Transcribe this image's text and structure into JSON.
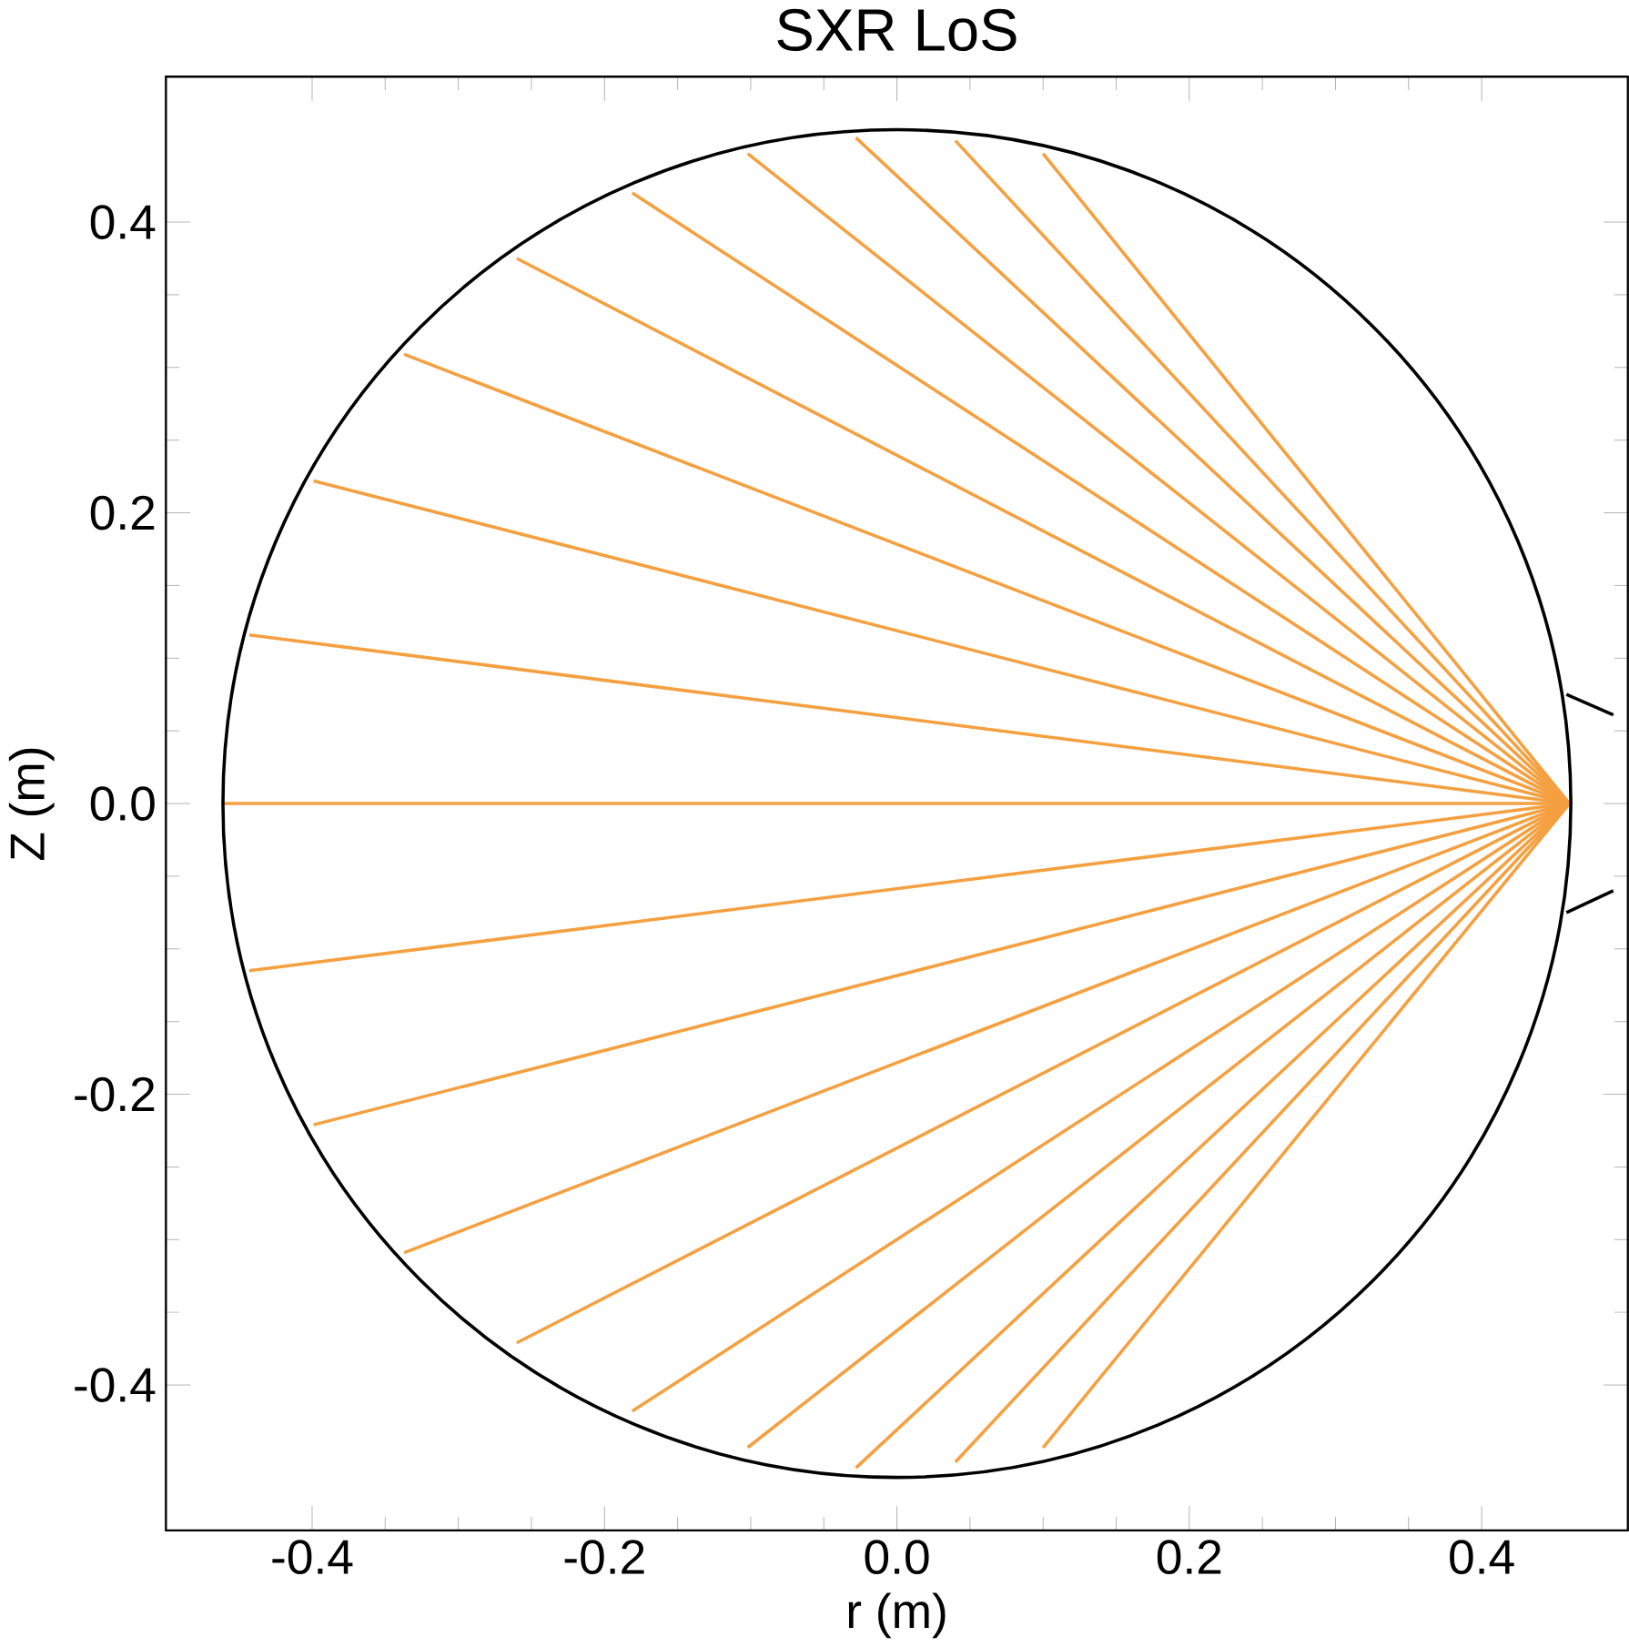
{
  "chart_data": {
    "type": "line",
    "title": "SXR LoS",
    "xlabel": "r (m)",
    "ylabel": "Z (m)",
    "xlim": [
      -0.5,
      0.5
    ],
    "ylim": [
      -0.5,
      0.5
    ],
    "xticks": [
      -0.4,
      -0.2,
      {
        "value": 0,
        "label": "0.0"
      },
      0.2,
      0.4
    ],
    "yticks": [
      -0.4,
      -0.2,
      {
        "value": 0,
        "label": "0.0"
      },
      0.2,
      0.4
    ],
    "grid": false,
    "marker": "none",
    "line_style": "solid",
    "series": [
      {
        "color": "#000000",
        "x": [
          0.458,
          0.49
        ],
        "values": [
          0.075,
          0.061
        ]
      },
      {
        "color": "#000000",
        "x": [
          0.458,
          0.49
        ],
        "values": [
          -0.075,
          -0.06
        ]
      },
      {
        "color": "#f5a040",
        "x": [
          0.46,
          0.1
        ],
        "values": [
          0,
          0.447
        ]
      },
      {
        "color": "#f5a040",
        "x": [
          0.46,
          0.04
        ],
        "values": [
          0,
          0.456
        ]
      },
      {
        "color": "#f5a040",
        "x": [
          0.46,
          -0.028
        ],
        "values": [
          0,
          0.458
        ]
      },
      {
        "color": "#f5a040",
        "x": [
          0.46,
          -0.102
        ],
        "values": [
          0,
          0.447
        ]
      },
      {
        "color": "#f5a040",
        "x": [
          0.46,
          -0.181
        ],
        "values": [
          0,
          0.42
        ]
      },
      {
        "color": "#f5a040",
        "x": [
          0.46,
          -0.26
        ],
        "values": [
          0,
          0.375
        ]
      },
      {
        "color": "#f5a040",
        "x": [
          0.46,
          -0.337
        ],
        "values": [
          0,
          0.309
        ]
      },
      {
        "color": "#f5a040",
        "x": [
          0.46,
          -0.399
        ],
        "values": [
          0,
          0.222
        ]
      },
      {
        "color": "#f5a040",
        "x": [
          0.46,
          -0.443
        ],
        "values": [
          0,
          0.116
        ]
      },
      {
        "color": "#f5a040",
        "x": [
          0.46,
          -0.461
        ],
        "values": [
          0,
          0
        ]
      },
      {
        "color": "#f5a040",
        "x": [
          0.46,
          -0.443
        ],
        "values": [
          0,
          -0.115
        ]
      },
      {
        "color": "#f5a040",
        "x": [
          0.46,
          -0.399
        ],
        "values": [
          0,
          -0.221
        ]
      },
      {
        "color": "#f5a040",
        "x": [
          0.46,
          -0.337
        ],
        "values": [
          0,
          -0.309
        ]
      },
      {
        "color": "#f5a040",
        "x": [
          0.46,
          -0.26
        ],
        "values": [
          0,
          -0.371
        ]
      },
      {
        "color": "#f5a040",
        "x": [
          0.46,
          -0.181
        ],
        "values": [
          0,
          -0.418
        ]
      },
      {
        "color": "#f5a040",
        "x": [
          0.46,
          -0.102
        ],
        "values": [
          0,
          -0.443
        ]
      },
      {
        "color": "#f5a040",
        "x": [
          0.46,
          -0.028
        ],
        "values": [
          0,
          -0.457
        ]
      },
      {
        "color": "#f5a040",
        "x": [
          0.46,
          0.04
        ],
        "values": [
          0,
          -0.453
        ]
      },
      {
        "color": "#f5a040",
        "x": [
          0.46,
          0.1
        ],
        "values": [
          0,
          -0.443
        ]
      }
    ]
  }
}
